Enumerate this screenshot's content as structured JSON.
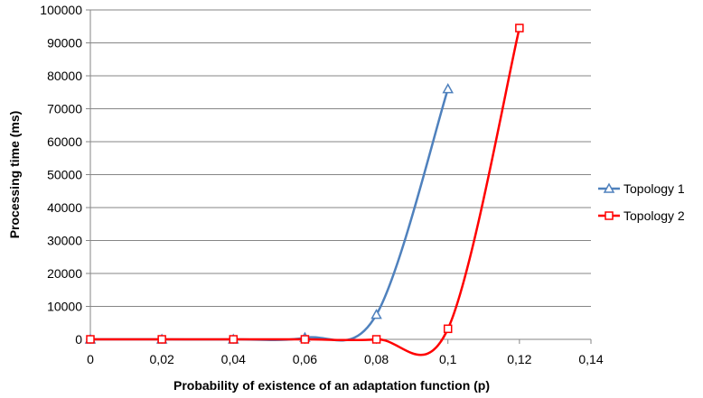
{
  "chart_data": {
    "type": "line",
    "xlabel": "Probability of existence of an adaptation function (p)",
    "ylabel": "Processing time (ms)",
    "xlim": [
      0,
      0.14
    ],
    "ylim": [
      0,
      100000
    ],
    "x_ticks": [
      0,
      0.02,
      0.04,
      0.06,
      0.08,
      0.1,
      0.12,
      0.14
    ],
    "x_tick_labels": [
      "0",
      "0,02",
      "0,04",
      "0,06",
      "0,08",
      "0,1",
      "0,12",
      "0,14"
    ],
    "y_ticks": [
      0,
      10000,
      20000,
      30000,
      40000,
      50000,
      60000,
      70000,
      80000,
      90000,
      100000
    ],
    "y_tick_labels": [
      "0",
      "10000",
      "20000",
      "30000",
      "40000",
      "50000",
      "60000",
      "70000",
      "80000",
      "90000",
      "100000"
    ],
    "grid": true,
    "legend_position": "right",
    "series": [
      {
        "name": "Topology 1",
        "color": "#4F81BD",
        "marker": "triangle",
        "x": [
          0,
          0.02,
          0.04,
          0.06,
          0.08,
          0.1
        ],
        "y": [
          0,
          0,
          0,
          500,
          7500,
          76000
        ]
      },
      {
        "name": "Topology 2",
        "color": "#FF0000",
        "marker": "square",
        "x": [
          0,
          0.02,
          0.04,
          0.06,
          0.08,
          0.1,
          0.12
        ],
        "y": [
          0,
          0,
          0,
          0,
          0,
          3200,
          94500
        ]
      }
    ]
  }
}
